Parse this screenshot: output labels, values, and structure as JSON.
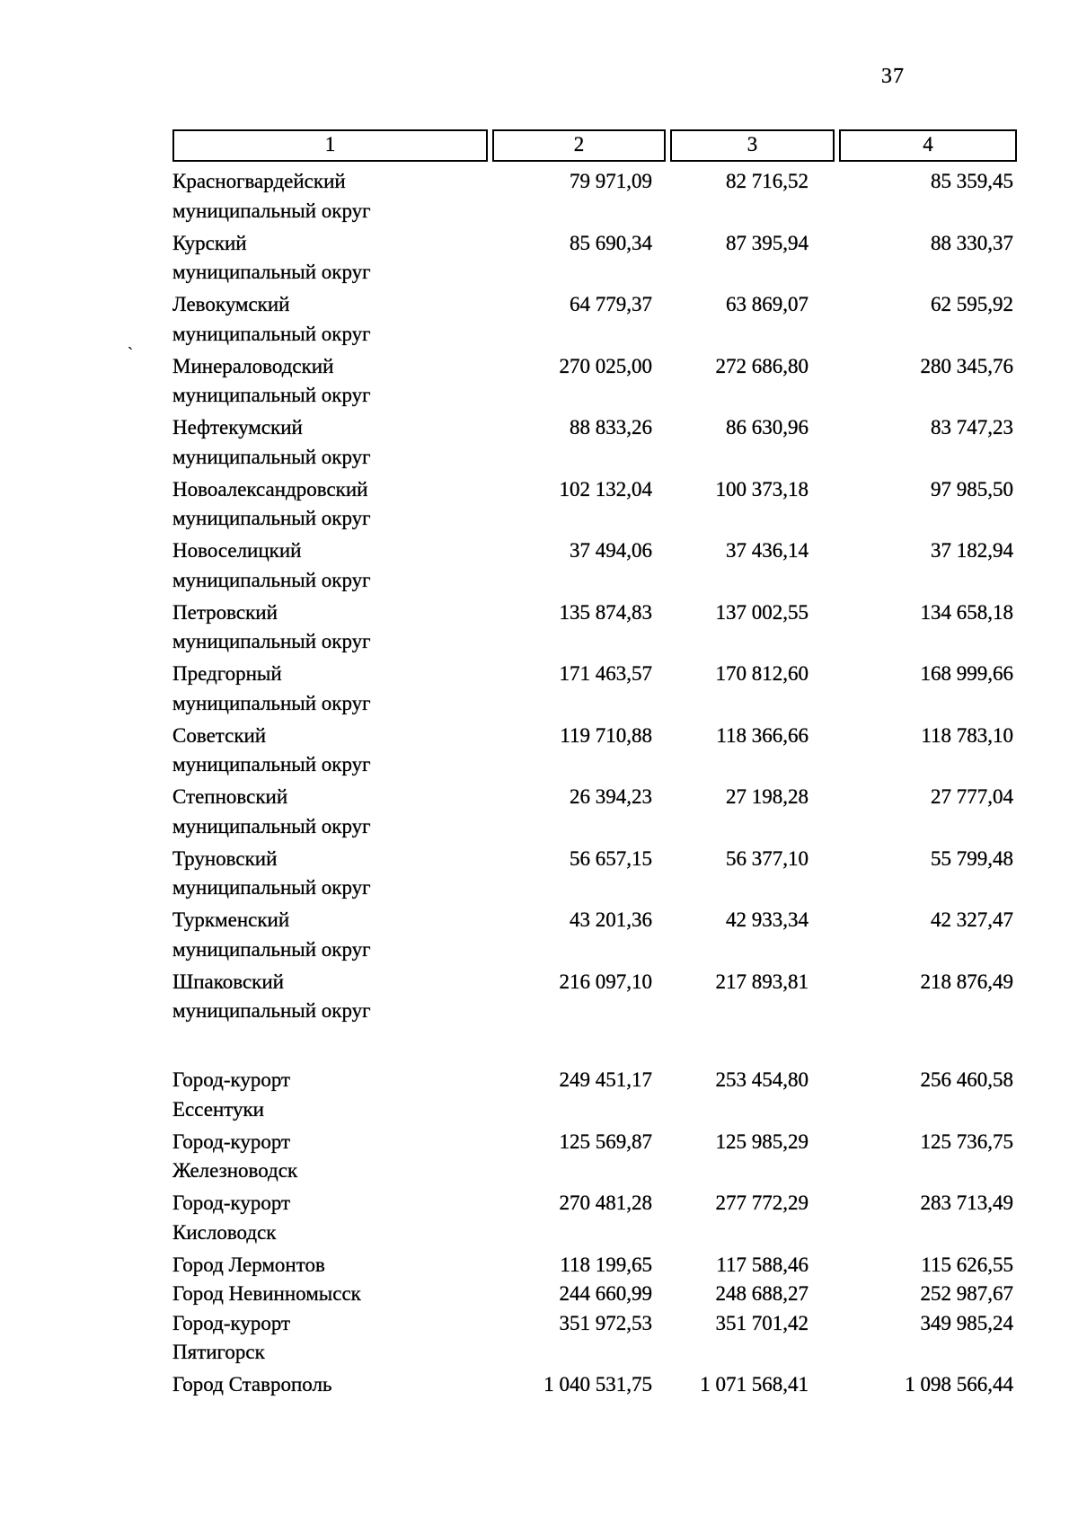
{
  "page_number": "37",
  "artifact_mark": "`",
  "table": {
    "header_columns": [
      "1",
      "2",
      "3",
      "4"
    ],
    "districts": [
      {
        "lines": [
          "Красногвардейский",
          "муниципальный округ"
        ],
        "values": [
          "79 971,09",
          "82 716,52",
          "85 359,45"
        ]
      },
      {
        "lines": [
          "Курский",
          "муниципальный округ"
        ],
        "values": [
          "85 690,34",
          "87 395,94",
          "88 330,37"
        ]
      },
      {
        "lines": [
          "Левокумский",
          "муниципальный округ"
        ],
        "values": [
          "64 779,37",
          "63 869,07",
          "62 595,92"
        ]
      },
      {
        "lines": [
          "Минераловодский",
          "муниципальный округ"
        ],
        "values": [
          "270 025,00",
          "272 686,80",
          "280 345,76"
        ]
      },
      {
        "lines": [
          "Нефтекумский",
          "муниципальный округ"
        ],
        "values": [
          "88 833,26",
          "86 630,96",
          "83 747,23"
        ]
      },
      {
        "lines": [
          "Новоалександровский",
          "муниципальный округ"
        ],
        "values": [
          "102 132,04",
          "100 373,18",
          "97 985,50"
        ]
      },
      {
        "lines": [
          "Новоселицкий",
          "муниципальный округ"
        ],
        "values": [
          "37 494,06",
          "37 436,14",
          "37 182,94"
        ]
      },
      {
        "lines": [
          "Петровский",
          "муниципальный округ"
        ],
        "values": [
          "135 874,83",
          "137 002,55",
          "134 658,18"
        ]
      },
      {
        "lines": [
          "Предгорный",
          "муниципальный округ"
        ],
        "values": [
          "171 463,57",
          "170 812,60",
          "168 999,66"
        ]
      },
      {
        "lines": [
          "Советский",
          "муниципальный округ"
        ],
        "values": [
          "119 710,88",
          "118 366,66",
          "118 783,10"
        ]
      },
      {
        "lines": [
          "Степновский",
          "муниципальный округ"
        ],
        "values": [
          "26 394,23",
          "27 198,28",
          "27 777,04"
        ]
      },
      {
        "lines": [
          "Труновский",
          "муниципальный округ"
        ],
        "values": [
          "56 657,15",
          "56 377,10",
          "55 799,48"
        ]
      },
      {
        "lines": [
          "Туркменский",
          "муниципальный округ"
        ],
        "values": [
          "43 201,36",
          "42 933,34",
          "42 327,47"
        ]
      },
      {
        "lines": [
          "Шпаковский",
          "муниципальный округ"
        ],
        "values": [
          "216 097,10",
          "217 893,81",
          "218 876,49"
        ]
      }
    ],
    "cities": [
      {
        "lines": [
          "Город-курорт",
          "Ессентуки"
        ],
        "values": [
          "249 451,17",
          "253 454,80",
          "256 460,58"
        ]
      },
      {
        "lines": [
          "Город-курорт",
          "Железноводск"
        ],
        "values": [
          "125 569,87",
          "125 985,29",
          "125 736,75"
        ]
      },
      {
        "lines": [
          "Город-курорт",
          "Кисловодск"
        ],
        "values": [
          "270 481,28",
          "277 772,29",
          "283 713,49"
        ]
      },
      {
        "lines": [
          "Город Лермонтов"
        ],
        "values": [
          "118 199,65",
          "117 588,46",
          "115 626,55"
        ]
      },
      {
        "lines": [
          "Город Невинномысск"
        ],
        "values": [
          "244 660,99",
          "248 688,27",
          "252 987,67"
        ]
      },
      {
        "lines": [
          "Город-курорт",
          "Пятигорск"
        ],
        "values": [
          "351 972,53",
          "351 701,42",
          "349 985,24"
        ]
      },
      {
        "lines": [
          "Город Ставрополь"
        ],
        "values": [
          "1 040 531,75",
          "1 071 568,41",
          "1 098 566,44"
        ]
      }
    ]
  }
}
